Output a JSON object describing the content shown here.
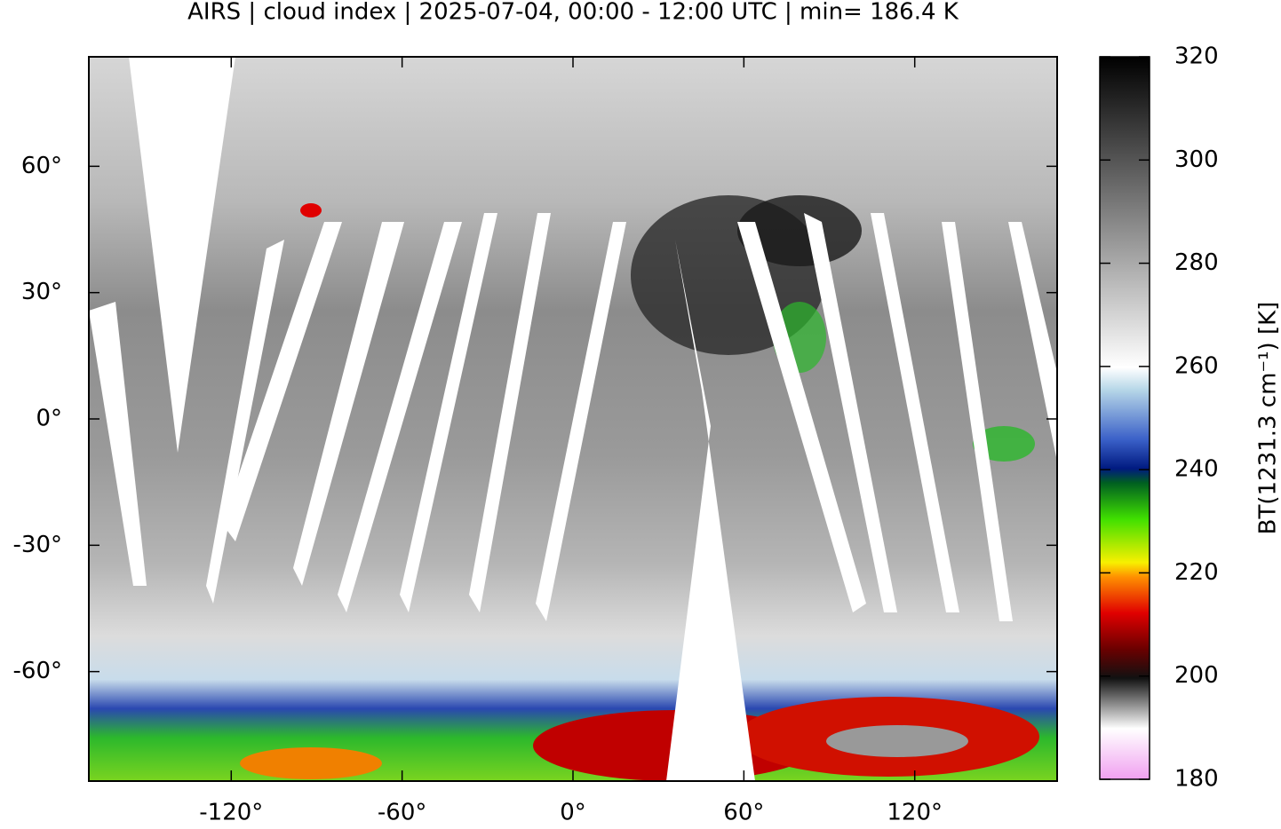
{
  "chart_data": {
    "type": "map",
    "title": "AIRS | cloud index | 2025-07-04, 00:00 - 12:00 UTC | min= 186.4 K",
    "xlim": [
      -170,
      170
    ],
    "ylim": [
      -86,
      86
    ],
    "xticks": [
      {
        "value": -120,
        "label": "-120°"
      },
      {
        "value": -60,
        "label": "-60°"
      },
      {
        "value": 0,
        "label": "0°"
      },
      {
        "value": 60,
        "label": "60°"
      },
      {
        "value": 120,
        "label": "120°"
      }
    ],
    "yticks": [
      {
        "value": 60,
        "label": "60°"
      },
      {
        "value": 30,
        "label": "30°"
      },
      {
        "value": 0,
        "label": "0°"
      },
      {
        "value": -30,
        "label": "-30°"
      },
      {
        "value": -60,
        "label": "-60°"
      }
    ],
    "colorbar": {
      "zlim": [
        180,
        320
      ],
      "ticks": [
        180,
        200,
        220,
        240,
        260,
        280,
        300,
        320
      ],
      "label": "BT(1231.3 cm⁻¹) [K]"
    }
  }
}
